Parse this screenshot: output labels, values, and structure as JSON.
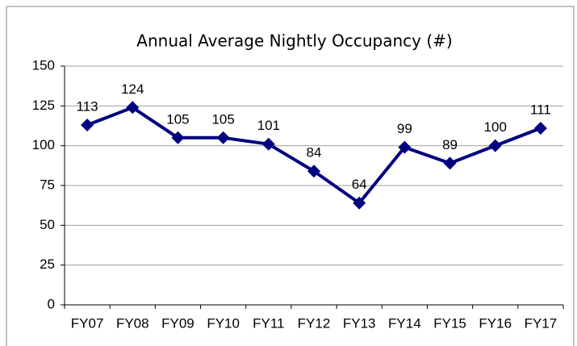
{
  "chart_data": {
    "type": "line",
    "title": "Annual Average Nightly Occupancy (#)",
    "categories": [
      "FY07",
      "FY08",
      "FY09",
      "FY10",
      "FY11",
      "FY12",
      "FY13",
      "FY14",
      "FY15",
      "FY16",
      "FY17"
    ],
    "values": [
      113,
      124,
      105,
      105,
      101,
      84,
      64,
      99,
      89,
      100,
      111
    ],
    "color": "#000080",
    "ylim": [
      0,
      150
    ],
    "yticks": [
      0,
      25,
      50,
      75,
      100,
      125,
      150
    ],
    "grid": true
  }
}
